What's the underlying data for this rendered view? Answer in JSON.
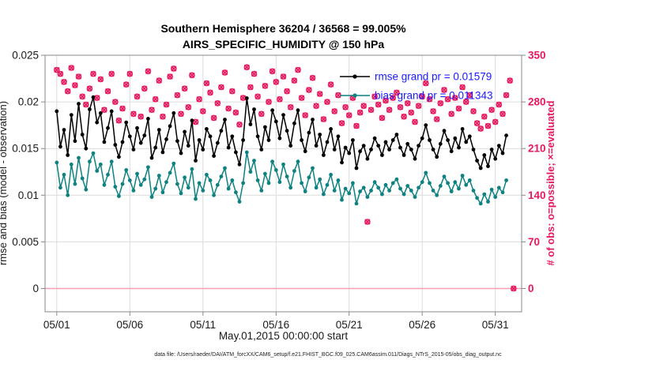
{
  "header": {
    "title": "Southern Hemisphere 36204 / 36568 = 99.005%",
    "subtitle": "AIRS_SPECIFIC_HUMIDITY @ 150 hPa"
  },
  "footer": {
    "caption": "data file: /Users/raeder/DAI/ATM_forcXX/CAM6_setup/f.e21.FHIST_BGC.f09_025.CAM6assim.011/Diags_NTrS_2015-05/obs_diag_output.nc"
  },
  "chart_data": {
    "type": "line",
    "title": "Southern Hemisphere 36204 / 36568 = 99.005%",
    "subtitle": "AIRS_SPECIFIC_HUMIDITY @ 150 hPa",
    "xlabel": "May.01,2015 00:00:00 start",
    "ylabel_left": "rmse and bias (model - observation)",
    "ylabel_right": "# of obs: o=possible; ×=evaluated",
    "x_tick_labels": [
      "05/01",
      "05/06",
      "05/11",
      "05/16",
      "05/21",
      "05/26",
      "05/31"
    ],
    "x_tick_days": [
      0,
      5,
      10,
      15,
      20,
      25,
      30
    ],
    "y_left_ticks": [
      0,
      0.005,
      0.01,
      0.015,
      0.02,
      0.025
    ],
    "y_left_tick_labels": [
      "0",
      "0.005",
      "0.01",
      "0.015",
      "0.02",
      "0.025"
    ],
    "y_right_ticks": [
      0,
      70,
      140,
      210,
      280,
      350
    ],
    "y_left_range": [
      -0.0025,
      0.025
    ],
    "y_right_range": [
      -35,
      350
    ],
    "x_range_days": [
      -0.8,
      31.8
    ],
    "points_per_day": 4,
    "grid": true,
    "legend_position": "upper-right-inside",
    "legend_text_color": "#1a1aff",
    "zero_line_color": "#f2a0b2",
    "obs_color": "#e8185e",
    "frame_color": "#888888",
    "grid_color": "#dcdcdc",
    "legend": [
      {
        "label": "rmse grand pr = 0.01579",
        "color": "#000000"
      },
      {
        "label": "bias grand pr = 0.011343",
        "color": "#0d8280"
      }
    ],
    "series": [
      {
        "name": "rmse",
        "axis": "left",
        "color": "#000000",
        "marker": "dot",
        "values": [
          0.019,
          0.0152,
          0.017,
          0.0143,
          0.0186,
          0.0158,
          0.0198,
          0.0165,
          0.015,
          0.0192,
          0.0205,
          0.0178,
          0.0188,
          0.0157,
          0.0172,
          0.019,
          0.0154,
          0.0141,
          0.0157,
          0.0178,
          0.0163,
          0.0149,
          0.0172,
          0.0156,
          0.0164,
          0.0182,
          0.014,
          0.0151,
          0.017,
          0.0146,
          0.016,
          0.0174,
          0.0188,
          0.0158,
          0.0145,
          0.0168,
          0.0153,
          0.018,
          0.0137,
          0.0159,
          0.0149,
          0.0171,
          0.0163,
          0.0142,
          0.0156,
          0.0169,
          0.0181,
          0.0151,
          0.0163,
          0.0146,
          0.0133,
          0.0159,
          0.0204,
          0.0176,
          0.0192,
          0.0163,
          0.0149,
          0.0173,
          0.0159,
          0.0191,
          0.0179,
          0.0161,
          0.0186,
          0.0169,
          0.0153,
          0.0177,
          0.0191,
          0.0159,
          0.0147,
          0.0167,
          0.0181,
          0.0153,
          0.0165,
          0.0143,
          0.0157,
          0.0171,
          0.0149,
          0.0163,
          0.0135,
          0.0151,
          0.0145,
          0.0159,
          0.0129,
          0.0147,
          0.0153,
          0.0139,
          0.0149,
          0.0161,
          0.0153,
          0.0143,
          0.0157,
          0.0149,
          0.0159,
          0.0165,
          0.0151,
          0.0143,
          0.0155,
          0.0149,
          0.0139,
          0.0153,
          0.0161,
          0.0175,
          0.0159,
          0.0149,
          0.0141,
          0.0155,
          0.0169,
          0.0159,
          0.0147,
          0.0161,
          0.0151,
          0.0171,
          0.0157,
          0.0163,
          0.0149,
          0.0137,
          0.0129,
          0.0143,
          0.0131,
          0.0149,
          0.0139,
          0.0153,
          0.0145,
          0.0164
        ]
      },
      {
        "name": "bias",
        "axis": "left",
        "color": "#0d8280",
        "marker": "dot",
        "values": [
          0.0135,
          0.0108,
          0.0122,
          0.01,
          0.0133,
          0.0112,
          0.014,
          0.0118,
          0.0106,
          0.0136,
          0.0145,
          0.0126,
          0.0133,
          0.0111,
          0.0122,
          0.0136,
          0.0109,
          0.0099,
          0.0112,
          0.0127,
          0.0116,
          0.0105,
          0.0123,
          0.0111,
          0.0117,
          0.013,
          0.0098,
          0.0107,
          0.0121,
          0.0103,
          0.0114,
          0.0124,
          0.0134,
          0.0112,
          0.0102,
          0.0119,
          0.0108,
          0.0128,
          0.0096,
          0.0113,
          0.0105,
          0.0122,
          0.0116,
          0.01,
          0.0111,
          0.012,
          0.0129,
          0.0107,
          0.0116,
          0.0103,
          0.0093,
          0.0113,
          0.0146,
          0.0125,
          0.0137,
          0.0116,
          0.0105,
          0.0123,
          0.0113,
          0.0136,
          0.0127,
          0.0114,
          0.0133,
          0.012,
          0.0108,
          0.0126,
          0.0136,
          0.0113,
          0.0104,
          0.0119,
          0.0129,
          0.0108,
          0.0117,
          0.0101,
          0.0111,
          0.0122,
          0.0105,
          0.0116,
          0.0095,
          0.0107,
          0.0102,
          0.0113,
          0.0091,
          0.0104,
          0.0108,
          0.0098,
          0.0105,
          0.0114,
          0.0108,
          0.0101,
          0.0111,
          0.0105,
          0.0113,
          0.0117,
          0.0107,
          0.0101,
          0.011,
          0.0105,
          0.0098,
          0.0108,
          0.0114,
          0.0124,
          0.0113,
          0.0105,
          0.01,
          0.011,
          0.012,
          0.0113,
          0.0104,
          0.0114,
          0.0107,
          0.0121,
          0.0111,
          0.0116,
          0.0105,
          0.0097,
          0.0091,
          0.0101,
          0.0093,
          0.0106,
          0.0098,
          0.0108,
          0.0103,
          0.0116
        ]
      },
      {
        "name": "possible_obs",
        "axis": "right",
        "color": "#e8185e",
        "marker": "o",
        "values": [
          328,
          322,
          310,
          296,
          331,
          305,
          318,
          288,
          276,
          300,
          322,
          286,
          314,
          268,
          296,
          322,
          280,
          252,
          270,
          306,
          322,
          262,
          288,
          258,
          300,
          326,
          268,
          284,
          312,
          258,
          276,
          318,
          330,
          290,
          262,
          300,
          272,
          320,
          250,
          284,
          266,
          308,
          294,
          256,
          278,
          302,
          324,
          270,
          296,
          264,
          246,
          286,
          332,
          302,
          322,
          288,
          262,
          304,
          280,
          326,
          310,
          284,
          318,
          296,
          272,
          312,
          328,
          286,
          260,
          298,
          316,
          274,
          292,
          254,
          280,
          306,
          266,
          290,
          248,
          272,
          260,
          286,
          244,
          264,
          274,
          100,
          268,
          288,
          276,
          256,
          282,
          268,
          286,
          294,
          272,
          258,
          278,
          264,
          250,
          274,
          288,
          308,
          284,
          266,
          254,
          278,
          298,
          284,
          262,
          286,
          270,
          302,
          280,
          290,
          266,
          248,
          240,
          258,
          244,
          268,
          250,
          276,
          262,
          290,
          312,
          0
        ]
      },
      {
        "name": "evaluated_obs",
        "axis": "right",
        "color": "#e8185e",
        "marker": "x",
        "values": [
          328,
          322,
          310,
          296,
          331,
          305,
          318,
          288,
          276,
          300,
          322,
          286,
          314,
          268,
          296,
          322,
          280,
          252,
          270,
          306,
          322,
          262,
          288,
          258,
          300,
          326,
          268,
          284,
          312,
          258,
          276,
          318,
          330,
          290,
          262,
          300,
          272,
          320,
          250,
          284,
          266,
          308,
          294,
          256,
          278,
          302,
          324,
          270,
          296,
          264,
          246,
          286,
          332,
          302,
          322,
          288,
          262,
          304,
          280,
          326,
          310,
          284,
          318,
          296,
          272,
          312,
          328,
          286,
          260,
          298,
          316,
          274,
          292,
          254,
          280,
          306,
          266,
          290,
          248,
          272,
          260,
          286,
          244,
          264,
          274,
          100,
          268,
          288,
          276,
          256,
          282,
          268,
          286,
          294,
          272,
          258,
          278,
          264,
          250,
          274,
          288,
          308,
          284,
          266,
          254,
          278,
          298,
          284,
          262,
          286,
          270,
          302,
          280,
          290,
          266,
          248,
          240,
          258,
          244,
          268,
          250,
          276,
          262,
          290,
          312,
          0
        ]
      }
    ]
  }
}
